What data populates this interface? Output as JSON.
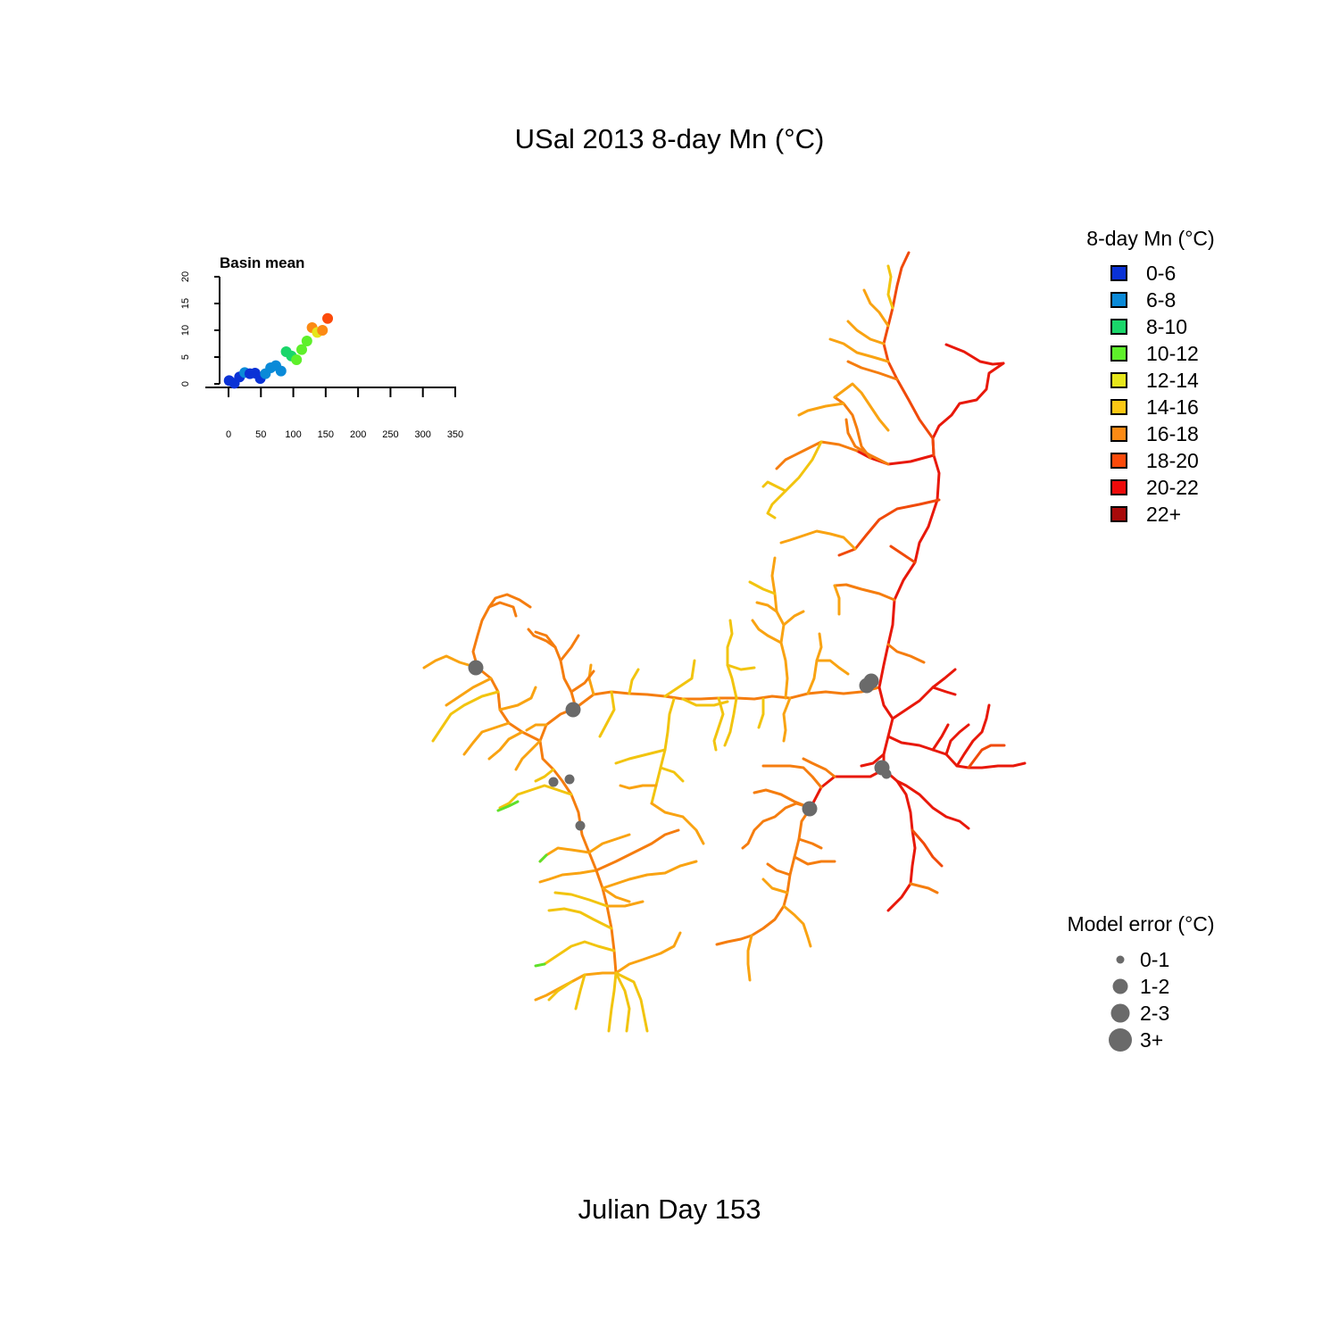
{
  "title": "USal 2013 8-day Mn (°C)",
  "day_label": "Julian Day 153",
  "inset": {
    "title": "Basin mean",
    "x_ticks": [
      "0",
      "50",
      "100",
      "150",
      "200",
      "250",
      "300",
      "350"
    ],
    "y_ticks": [
      "0",
      "5",
      "10",
      "15",
      "20"
    ]
  },
  "temp_legend": {
    "title": "8-day Mn (°C)",
    "items": [
      {
        "label": "0-6",
        "color": "#0a32d6"
      },
      {
        "label": "6-8",
        "color": "#0a8ad8"
      },
      {
        "label": "8-10",
        "color": "#1ad66a"
      },
      {
        "label": "10-12",
        "color": "#5ef02a"
      },
      {
        "label": "12-14",
        "color": "#e6e61a"
      },
      {
        "label": "14-16",
        "color": "#fcc814"
      },
      {
        "label": "16-18",
        "color": "#fc8a14"
      },
      {
        "label": "18-20",
        "color": "#fc4a0a"
      },
      {
        "label": "20-22",
        "color": "#ee0a0a"
      },
      {
        "label": "22+",
        "color": "#a80a0a"
      }
    ]
  },
  "error_legend": {
    "title": "Model error (°C)",
    "items": [
      {
        "label": "0-1",
        "level": 1
      },
      {
        "label": "1-2",
        "level": 2
      },
      {
        "label": "2-3",
        "level": 3
      },
      {
        "label": "3+",
        "level": 4
      }
    ]
  },
  "chart_data": {
    "type": "scatter",
    "title": "Basin mean",
    "xlim": [
      0,
      350
    ],
    "ylim": [
      0,
      20
    ],
    "points": [
      {
        "x": 1,
        "y": 0.6,
        "color": "#0a32d6"
      },
      {
        "x": 9,
        "y": 0.1,
        "color": "#0a32d6"
      },
      {
        "x": 17,
        "y": 1.3,
        "color": "#0a32d6"
      },
      {
        "x": 25,
        "y": 2.1,
        "color": "#0a8ad8"
      },
      {
        "x": 33,
        "y": 1.9,
        "color": "#0a32d6"
      },
      {
        "x": 41,
        "y": 2.0,
        "color": "#0a32d6"
      },
      {
        "x": 49,
        "y": 1.0,
        "color": "#0a32d6"
      },
      {
        "x": 57,
        "y": 1.9,
        "color": "#0a8ad8"
      },
      {
        "x": 65,
        "y": 3.0,
        "color": "#0a8ad8"
      },
      {
        "x": 73,
        "y": 3.4,
        "color": "#0a8ad8"
      },
      {
        "x": 81,
        "y": 2.4,
        "color": "#0a8ad8"
      },
      {
        "x": 89,
        "y": 6.0,
        "color": "#1ad66a"
      },
      {
        "x": 97,
        "y": 5.2,
        "color": "#1ad66a"
      },
      {
        "x": 105,
        "y": 4.5,
        "color": "#5ef02a"
      },
      {
        "x": 113,
        "y": 6.4,
        "color": "#5ef02a"
      },
      {
        "x": 121,
        "y": 8.0,
        "color": "#5ef02a"
      },
      {
        "x": 129,
        "y": 10.5,
        "color": "#fc8a14"
      },
      {
        "x": 137,
        "y": 9.6,
        "color": "#e6e61a"
      },
      {
        "x": 145,
        "y": 10.0,
        "color": "#fc8a14"
      },
      {
        "x": 153,
        "y": 12.2,
        "color": "#fc4a0a"
      }
    ]
  },
  "network_colors": {
    "red": "#e8180a",
    "redorange": "#f04a0a",
    "orange": "#f57d0f",
    "amber": "#f9a312",
    "yellow": "#f2c40f",
    "lightyellow": "#e8d818",
    "green": "#5ee02a"
  },
  "error_marker_color": "#6a6a6a"
}
